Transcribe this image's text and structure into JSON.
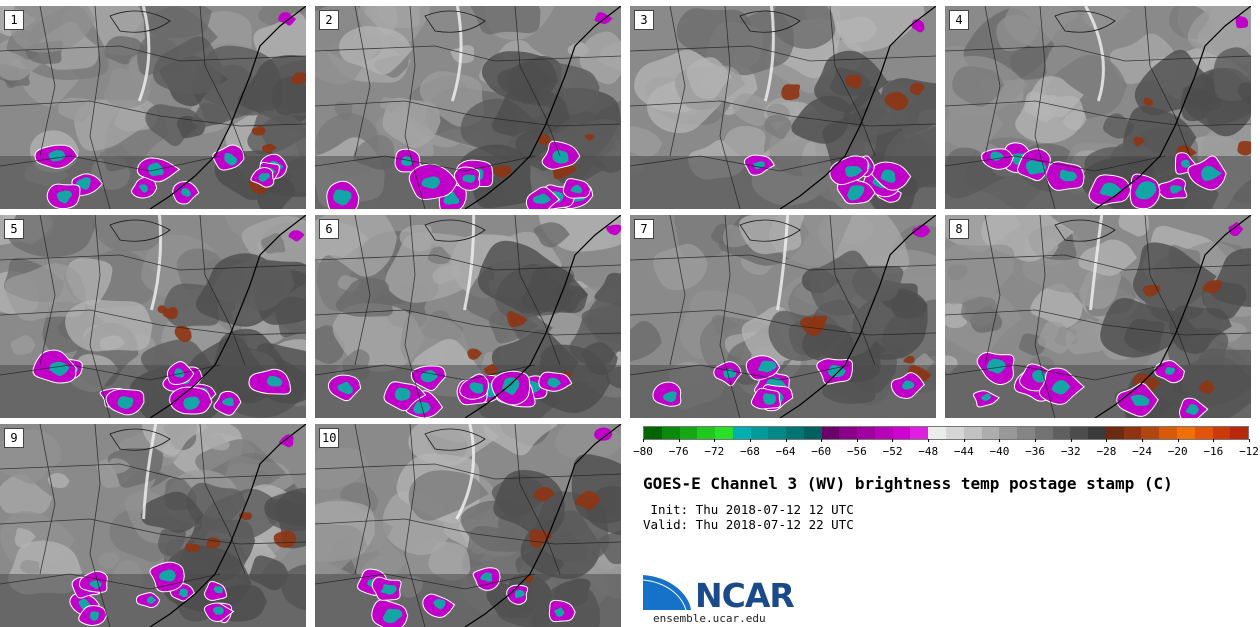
{
  "panels": [
    {
      "label": "1"
    },
    {
      "label": "2"
    },
    {
      "label": "3"
    },
    {
      "label": "4"
    },
    {
      "label": "5"
    },
    {
      "label": "6"
    },
    {
      "label": "7"
    },
    {
      "label": "8"
    },
    {
      "label": "9"
    },
    {
      "label": "10"
    }
  ],
  "colorbar": {
    "colors": [
      "#006400",
      "#0a8a0a",
      "#14a814",
      "#1ec81e",
      "#28e028",
      "#00b0b0",
      "#009a9a",
      "#008787",
      "#007373",
      "#005f5f",
      "#6a006a",
      "#8a008a",
      "#a000a0",
      "#b800b8",
      "#d000d0",
      "#e020e0",
      "#ececec",
      "#d6d6d6",
      "#c2c2c2",
      "#adadad",
      "#989898",
      "#858585",
      "#727272",
      "#5f5f5f",
      "#4c4c4c",
      "#3a3a3a",
      "#6b2b12",
      "#8e3412",
      "#b04610",
      "#d85a08",
      "#f07008",
      "#e0540a",
      "#cc3a0a",
      "#b82808"
    ],
    "ticks": [
      "−80",
      "−76",
      "−72",
      "−68",
      "−64",
      "−60",
      "−56",
      "−52",
      "−48",
      "−44",
      "−40",
      "−36",
      "−32",
      "−28",
      "−24",
      "−20",
      "−16",
      "−12"
    ]
  },
  "title": "GOES-E Channel 3 (WV) brightness temp postage stamp (C)",
  "init": " Init: Thu 2018-07-12 12 UTC",
  "valid": "Valid: Thu 2018-07-12 22 UTC",
  "logo": {
    "word": "NCAR",
    "url": "ensemble.ucar.edu"
  }
}
